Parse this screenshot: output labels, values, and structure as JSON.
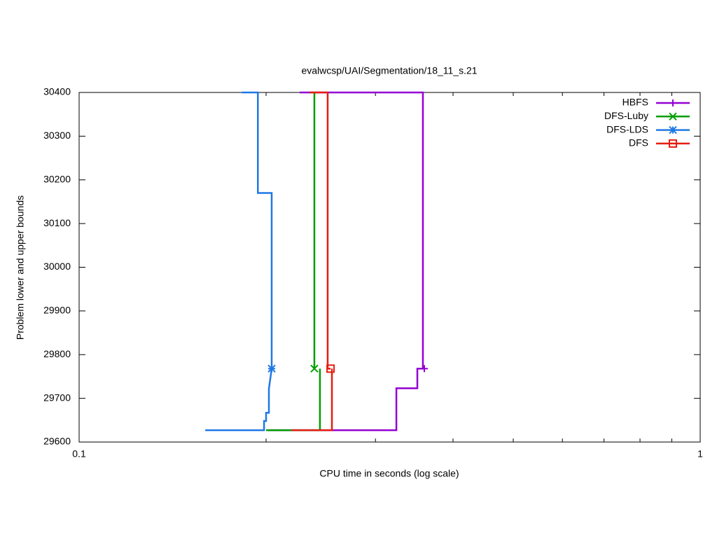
{
  "chart_data": {
    "type": "line",
    "title": "evalwcsp/UAI/Segmentation/18_11_s.21",
    "x_label": "CPU time in seconds (log scale)",
    "y_label": "Problem lower and upper bounds",
    "x_log": true,
    "xlim": [
      0.1,
      1
    ],
    "xticks": [
      0.1,
      1
    ],
    "xminor_ticks": [
      0.2,
      0.3,
      0.4,
      0.5,
      0.6,
      0.7,
      0.8,
      0.9
    ],
    "ylim": [
      29600,
      30400
    ],
    "yticks": [
      29600,
      29700,
      29800,
      29900,
      30000,
      30100,
      30200,
      30300,
      30400
    ],
    "grid": false,
    "legend_position": "top-right",
    "series": [
      {
        "name": "HBFS",
        "color": "#9400d3",
        "marker": "plus",
        "x": [
          0.2265,
          0.3577,
          0.3577,
          null,
          0.2016,
          0.3242,
          0.3242,
          0.3504,
          0.3504,
          0.3596
        ],
        "values": [
          30400,
          30400,
          29768,
          null,
          29627,
          29627,
          29723,
          29723,
          29768,
          29768
        ]
      },
      {
        "name": "DFS-Luby",
        "color": "#009e00",
        "marker": "cross",
        "x": [
          0.2,
          0.2442,
          0.2442,
          null,
          0.2392,
          0.2392
        ],
        "values": [
          29627,
          29627,
          29768,
          null,
          30400,
          29768
        ]
      },
      {
        "name": "DFS-LDS",
        "color": "#1e78e6",
        "marker": "star",
        "x": [
          0.1596,
          0.1985,
          0.1985,
          0.2,
          0.2,
          0.2021,
          0.2021,
          0.2042,
          null,
          0.1827,
          0.194,
          0.194,
          0.2042,
          0.2042
        ],
        "values": [
          29627,
          29627,
          29648,
          29648,
          29667,
          29667,
          29722,
          29768,
          null,
          30400,
          30400,
          30170,
          30170,
          29768
        ]
      },
      {
        "name": "DFS",
        "color": "#e51e10",
        "marker": "square",
        "x": [
          0.2196,
          0.2553,
          0.2553,
          null,
          0.235,
          0.2513,
          0.2513,
          0.254
        ],
        "values": [
          29627,
          29627,
          29768,
          null,
          30400,
          30400,
          29768,
          29768
        ]
      }
    ]
  }
}
